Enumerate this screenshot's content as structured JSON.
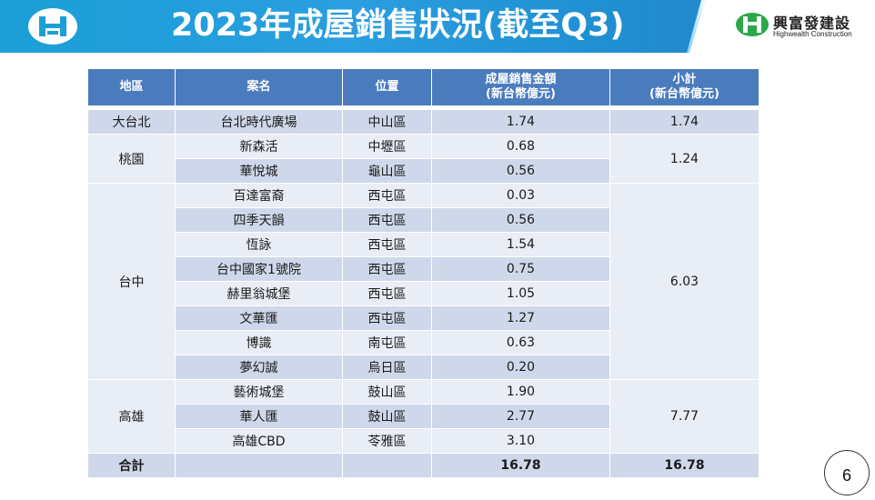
{
  "header": {
    "title": "2023年成屋銷售狀況(截至Q3)",
    "brand_name_zh": "興富發建設",
    "brand_name_en": "Highwealth Construction",
    "accent_color": "#1b9fd6"
  },
  "table": {
    "columns": [
      "地區",
      "案名",
      "位置",
      "成屋銷售金額\n(新台幣億元)",
      "小計\n(新台幣億元)"
    ],
    "col_amount_line1": "成屋銷售金額",
    "col_amount_line2": "(新台幣億元)",
    "col_subtotal_line1": "小計",
    "col_subtotal_line2": "(新台幣億元)",
    "regions": [
      {
        "name": "大台北",
        "subtotal": "1.74"
      },
      {
        "name": "桃園",
        "subtotal": "1.24"
      },
      {
        "name": "台中",
        "subtotal": "6.03"
      },
      {
        "name": "高雄",
        "subtotal": "7.77"
      }
    ],
    "rows": [
      {
        "project": "台北時代廣場",
        "location": "中山區",
        "amount": "1.74"
      },
      {
        "project": "新森活",
        "location": "中壢區",
        "amount": "0.68"
      },
      {
        "project": "華悅城",
        "location": "龜山區",
        "amount": "0.56"
      },
      {
        "project": "百達富裔",
        "location": "西屯區",
        "amount": "0.03"
      },
      {
        "project": "四季天韻",
        "location": "西屯區",
        "amount": "0.56"
      },
      {
        "project": "恆詠",
        "location": "西屯區",
        "amount": "1.54"
      },
      {
        "project": "台中國家1號院",
        "location": "西屯區",
        "amount": "0.75"
      },
      {
        "project": "赫里翁城堡",
        "location": "西屯區",
        "amount": "1.05"
      },
      {
        "project": "文華匯",
        "location": "西屯區",
        "amount": "1.27"
      },
      {
        "project": "博識",
        "location": "南屯區",
        "amount": "0.63"
      },
      {
        "project": "夢幻誠",
        "location": "烏日區",
        "amount": "0.20"
      },
      {
        "project": "藝術城堡",
        "location": "鼓山區",
        "amount": "1.90"
      },
      {
        "project": "華人匯",
        "location": "鼓山區",
        "amount": "2.77"
      },
      {
        "project": "高雄CBD",
        "location": "苓雅區",
        "amount": "3.10"
      }
    ],
    "total": {
      "label": "合計",
      "amount": "16.78",
      "subtotal": "16.78"
    }
  },
  "page_number": "6",
  "logo_letter": "H"
}
